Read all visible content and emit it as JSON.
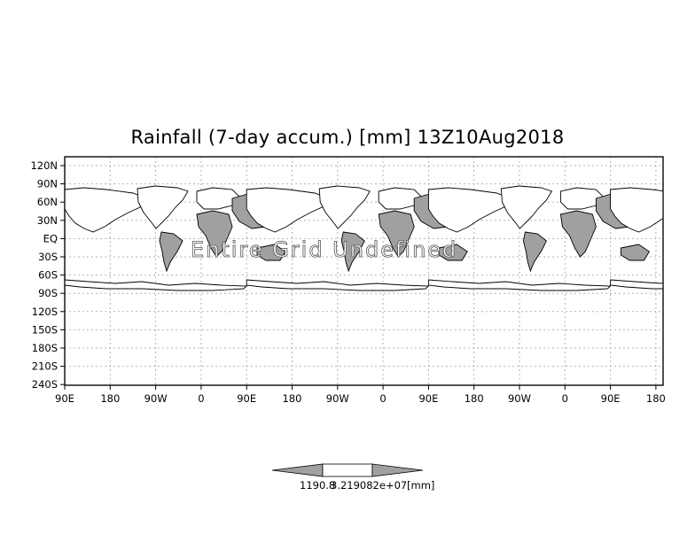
{
  "title": "Rainfall (7-day accum.) [mm] 13Z10Aug2018",
  "overlay_text": "Entire Grid Undefined",
  "y_axis_labels": [
    "120N",
    "90N",
    "60N",
    "30N",
    "EQ",
    "30S",
    "60S",
    "90S",
    "120S",
    "150S",
    "180S",
    "210S",
    "240S"
  ],
  "x_axis_labels": [
    "90E",
    "180",
    "90W",
    "0",
    "90E",
    "180",
    "90W",
    "0",
    "90E",
    "180",
    "90W",
    "0",
    "90E",
    "180"
  ],
  "colorbar": {
    "label_min": "1190.8",
    "label_max": "3.219082e+07",
    "unit": "[mm]"
  },
  "colors": {
    "land_shade": "#a0a0a0",
    "grid": "#b4b4b4",
    "frame": "#000000",
    "colorbar_arrow": "#a0a0a0"
  }
}
